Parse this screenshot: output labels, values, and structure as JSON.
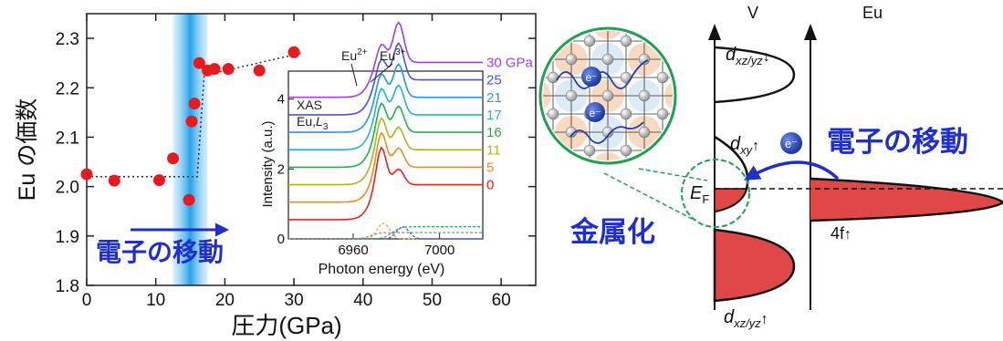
{
  "chart_data": [
    {
      "type": "scatter",
      "title": "",
      "xlabel": "圧力(GPa)",
      "ylabel": "Eu の価数",
      "xlim": [
        0,
        65
      ],
      "ylim": [
        1.8,
        2.35
      ],
      "x_ticks": [
        0,
        10,
        20,
        30,
        40,
        50,
        60
      ],
      "y_ticks": [
        1.8,
        1.9,
        2.0,
        2.1,
        2.2,
        2.3
      ],
      "x_tick_labels": [
        "0",
        "10",
        "20",
        "30",
        "40",
        "50",
        "60"
      ],
      "y_tick_labels": [
        "1.8",
        "1.9",
        "2.0",
        "2.1",
        "2.2",
        "2.3"
      ],
      "grid": false,
      "highlight_band": {
        "x_range": [
          12.5,
          17.5
        ],
        "color": "#29a3ea"
      },
      "points": [
        {
          "x": 0,
          "y": 2.025
        },
        {
          "x": 4,
          "y": 2.012
        },
        {
          "x": 10.5,
          "y": 2.013
        },
        {
          "x": 12.5,
          "y": 2.057
        },
        {
          "x": 14.8,
          "y": 1.973
        },
        {
          "x": 15.2,
          "y": 2.132
        },
        {
          "x": 15.6,
          "y": 2.168
        },
        {
          "x": 16.3,
          "y": 2.25
        },
        {
          "x": 17.5,
          "y": 2.235
        },
        {
          "x": 18.5,
          "y": 2.238
        },
        {
          "x": 20.5,
          "y": 2.238
        },
        {
          "x": 25,
          "y": 2.235
        },
        {
          "x": 30,
          "y": 2.272
        }
      ],
      "fit_line": [
        [
          0,
          2.02
        ],
        [
          16,
          2.02
        ],
        [
          17,
          2.225
        ],
        [
          31,
          2.27
        ]
      ],
      "annotation": "電子の移動",
      "point_color": "#e8191f",
      "annotation_color": "#1f2fc8"
    },
    {
      "type": "line",
      "title": "",
      "xlabel": "Photon energy (eV)",
      "ylabel": "Intensity (a.u.)",
      "xlim": [
        6930,
        7020
      ],
      "ylim": [
        0,
        4.8
      ],
      "x_ticks": [
        6960,
        7000
      ],
      "y_ticks": [
        0,
        2,
        4
      ],
      "x_tick_labels": [
        "6960",
        "7000"
      ],
      "y_tick_labels": [
        "0",
        "2",
        "4"
      ],
      "grid": false,
      "annotations": [
        "XAS",
        "Eu, L3",
        "Eu2+",
        "Eu3+"
      ],
      "series": [
        {
          "name": "30 GPa",
          "offset": 4.05,
          "color": "#a040e8"
        },
        {
          "name": "25",
          "offset": 3.55,
          "color": "#4a4ff0"
        },
        {
          "name": "21",
          "offset": 3.05,
          "color": "#2a92e8"
        },
        {
          "name": "17",
          "offset": 2.55,
          "color": "#1ab8c8"
        },
        {
          "name": "16",
          "offset": 2.05,
          "color": "#22b04a"
        },
        {
          "name": "11",
          "offset": 1.55,
          "color": "#a8b81c"
        },
        {
          "name": "5",
          "offset": 1.05,
          "color": "#f08a1e"
        },
        {
          "name": "0",
          "offset": 0.55,
          "color": "#e8231e"
        }
      ],
      "baseline_curves": [
        {
          "color": "#f2a22a",
          "peak_x": 6974,
          "peak_y": 0.5,
          "style": "dashed"
        },
        {
          "color": "#2a4ff0",
          "peak_x": 6983,
          "peak_y": 0.35,
          "style": "dashed"
        },
        {
          "color": "#22b04a",
          "style": "dashed"
        },
        {
          "color": "#888888",
          "style": "dashed"
        }
      ]
    }
  ],
  "diagram": {
    "col_v": "V",
    "col_eu": "Eu",
    "dxzyz_top_main": "d",
    "dxzyz_top_sub": "xz/yz",
    "dxzyz_top_arrow": "↓",
    "dxy_main": "d",
    "dxy_sub": "xy",
    "dxy_arrow": "↑",
    "ef_main": "E",
    "ef_sub": "F",
    "dxzyz_bot_main": "d",
    "dxzyz_bot_sub": "xz/yz",
    "dxzyz_bot_arrow": "↑",
    "f4_label": "4f",
    "f4_arrow": "↑",
    "electron_label": "e⁻",
    "electron_move_label": "電子の移動",
    "metallization_label": "金属化",
    "colors": {
      "band_fill": "#e04848",
      "accent": "#1f2fc8",
      "circle_line": "#20a050",
      "electron": "#1a3fb0"
    }
  }
}
